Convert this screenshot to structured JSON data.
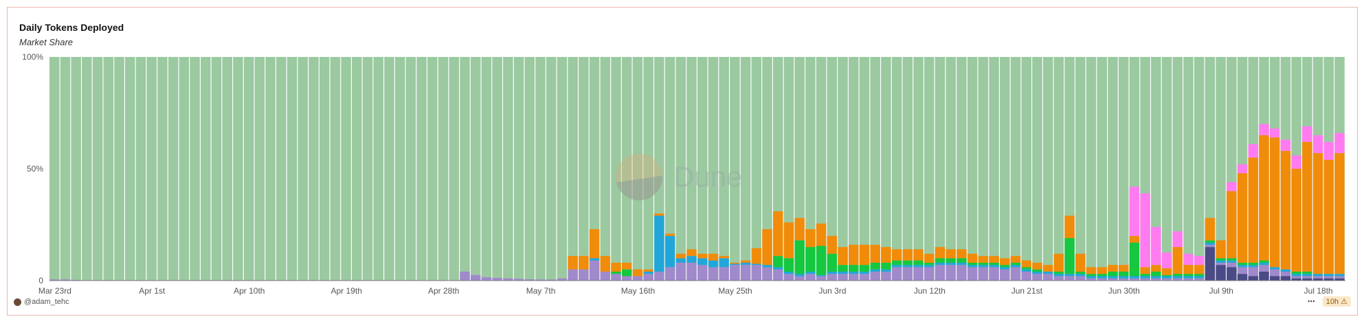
{
  "header": {
    "title": "Daily Tokens Deployed",
    "subtitle": "Market Share"
  },
  "footer": {
    "author": "@adam_tehc",
    "freshness": "10h",
    "more_label": "⋯",
    "warn_symbol": "⚠"
  },
  "watermark": "Dune",
  "colors": {
    "background_series": "#9bc9a0",
    "orange": "#f08c0a",
    "green": "#16c740",
    "blue": "#22a6d8",
    "purple": "#a08acb",
    "pink": "#ff7cf0",
    "navy": "#4a4a86"
  },
  "chart_data": {
    "type": "bar",
    "stacked": true,
    "percent": true,
    "n_days": 120,
    "ylim": [
      0,
      100
    ],
    "y_ticks": [
      "0",
      "50%",
      "100%"
    ],
    "x_tick_labels": [
      "Mar 23rd",
      "Apr 1st",
      "Apr 10th",
      "Apr 19th",
      "Apr 28th",
      "May 7th",
      "May 16th",
      "May 25th",
      "Jun 3rd",
      "Jun 12th",
      "Jun 21st",
      "Jun 30th",
      "Jul 9th",
      "Jul 18th"
    ],
    "stack_order": [
      "navy",
      "purple",
      "blue",
      "green",
      "orange",
      "pink"
    ],
    "series": [
      {
        "key": "purple",
        "values": [
          0.5,
          0.5,
          0.3,
          0.2,
          0.2,
          0.2,
          0.2,
          0.2,
          0.2,
          0.2,
          0.2,
          0.2,
          0.2,
          0.2,
          0.2,
          0.2,
          0.2,
          0.2,
          0.2,
          0.2,
          0.2,
          0.2,
          0.2,
          0.2,
          0.2,
          0.2,
          0.2,
          0.2,
          0.2,
          0.2,
          0.2,
          0.2,
          0.2,
          0.2,
          0.2,
          0.2,
          0.2,
          0.2,
          4,
          2.5,
          1.5,
          1.2,
          1,
          0.8,
          0.6,
          0.5,
          0.5,
          1,
          5,
          5,
          9,
          4,
          3,
          2,
          2,
          3,
          4,
          6,
          8,
          8,
          7,
          6,
          6,
          7,
          7,
          7,
          6,
          5,
          3,
          2,
          3,
          2,
          3,
          3,
          3,
          3,
          4,
          4,
          6,
          6,
          6,
          6,
          7,
          7,
          7,
          6,
          6,
          6,
          5,
          6,
          4,
          3,
          3,
          4,
          6,
          6,
          6,
          5,
          6,
          6,
          6,
          7,
          7,
          6,
          6,
          6,
          6,
          6,
          6,
          6,
          6,
          4,
          3,
          2,
          1,
          1,
          1,
          1,
          1,
          1,
          1,
          1,
          1,
          1,
          1,
          1,
          1,
          1,
          1,
          1,
          1,
          1,
          1,
          1,
          1,
          1,
          1,
          1,
          1
        ]
      },
      {
        "key": "blue",
        "values": [
          0,
          0,
          0,
          0,
          0,
          0,
          0,
          0,
          0,
          0,
          0,
          0,
          0,
          0,
          0,
          0,
          0,
          0,
          0,
          0,
          0,
          0,
          0,
          0,
          0,
          0,
          0,
          0,
          0,
          0,
          0,
          0,
          0,
          0,
          0,
          0,
          0,
          0,
          0,
          0,
          0,
          0,
          0,
          0,
          0,
          0,
          0,
          0,
          0,
          0,
          1,
          0,
          0,
          0,
          0,
          1,
          25,
          14,
          2,
          3,
          3,
          3,
          4,
          0.5,
          1,
          0.5,
          1,
          1,
          1,
          1,
          1,
          0.5,
          1,
          1,
          1,
          1,
          1,
          1,
          1,
          1,
          1,
          1,
          1,
          1,
          1,
          1,
          1,
          1,
          1,
          1,
          1,
          1,
          1,
          1,
          1,
          1,
          1,
          1,
          1,
          1,
          1,
          1,
          1,
          1,
          1,
          1,
          1,
          1,
          1,
          1,
          1,
          1,
          1,
          1,
          1,
          1,
          1,
          1,
          1,
          1,
          1,
          1,
          1,
          1,
          1,
          1,
          1,
          1,
          1,
          1,
          1,
          1,
          1,
          1,
          1,
          1,
          1,
          1,
          1,
          1,
          1
        ]
      },
      {
        "key": "green",
        "values": [
          0,
          0,
          0,
          0,
          0,
          0,
          0,
          0,
          0,
          0,
          0,
          0,
          0,
          0,
          0,
          0,
          0,
          0,
          0,
          0,
          0,
          0,
          0,
          0,
          0,
          0,
          0,
          0,
          0,
          0,
          0,
          0,
          0,
          0,
          0,
          0,
          0,
          0,
          0,
          0,
          0,
          0,
          0,
          0,
          0,
          0,
          0,
          0,
          0,
          0,
          0,
          0,
          1,
          3,
          0,
          0,
          0,
          0,
          0,
          0,
          0,
          0,
          0,
          0,
          0,
          0,
          0,
          5,
          6,
          15,
          11,
          13,
          8,
          3,
          3,
          3,
          3,
          3,
          2,
          2,
          2,
          1,
          2,
          2,
          2,
          1,
          1,
          1,
          1,
          1,
          1,
          1,
          0,
          1,
          16,
          1,
          1,
          1,
          2,
          2,
          15,
          1,
          2,
          0.5,
          1,
          1,
          1,
          1,
          1,
          1,
          1,
          1,
          1,
          0,
          0,
          1,
          1,
          0,
          0,
          0,
          0,
          0,
          0,
          0,
          0,
          0,
          0,
          0,
          0,
          0,
          0,
          0,
          0,
          0,
          0,
          0,
          0,
          0,
          0,
          0,
          0
        ]
      },
      {
        "key": "orange",
        "values": [
          0,
          0,
          0,
          0,
          0,
          0,
          0,
          0,
          0,
          0,
          0,
          0,
          0,
          0,
          0,
          0,
          0,
          0,
          0,
          0,
          0,
          0,
          0,
          0,
          0,
          0,
          0,
          0,
          0,
          0,
          0,
          0,
          0,
          0,
          0,
          0,
          0,
          0,
          0,
          0,
          0,
          0,
          0,
          0,
          0,
          0,
          0,
          0,
          6,
          6,
          13,
          7,
          4,
          3,
          3,
          1,
          1,
          1,
          2,
          3,
          2,
          3,
          1,
          0.5,
          1,
          7,
          16,
          20,
          16,
          10,
          8,
          10,
          8,
          8,
          9,
          9,
          8,
          7,
          5,
          5,
          5,
          4,
          5,
          4,
          4,
          4,
          3,
          3,
          3,
          3,
          3,
          3,
          3,
          3,
          2,
          3,
          3,
          3,
          3,
          3,
          3,
          3,
          3,
          3,
          3,
          4,
          4,
          4,
          4,
          4,
          4,
          4,
          4,
          4,
          4,
          4,
          4,
          3,
          3,
          3,
          2,
          2,
          0,
          0,
          5,
          12,
          40,
          62,
          60,
          70,
          65,
          62,
          58,
          56,
          60,
          60,
          64,
          66
        ]
      },
      {
        "key": "pink",
        "values": [
          0,
          0,
          0,
          0,
          0,
          0,
          0,
          0,
          0,
          0,
          0,
          0,
          0,
          0,
          0,
          0,
          0,
          0,
          0,
          0,
          0,
          0,
          0,
          0,
          0,
          0,
          0,
          0,
          0,
          0,
          0,
          0,
          0,
          0,
          0,
          0,
          0,
          0,
          0,
          0,
          0,
          0,
          0,
          0,
          0,
          0,
          0,
          0,
          0,
          0,
          0,
          0,
          0,
          0,
          0,
          0,
          0,
          0,
          0,
          0,
          0,
          0,
          0,
          0,
          0,
          0,
          0,
          0,
          0,
          0,
          0,
          0,
          0,
          0,
          0,
          0,
          0,
          0,
          0,
          0,
          0,
          0,
          0,
          0,
          0,
          0,
          0,
          0,
          0,
          0,
          0,
          0,
          0,
          0,
          0,
          0,
          0,
          0,
          0,
          0,
          0,
          0,
          0,
          0,
          0,
          0,
          0,
          0,
          0,
          0,
          0,
          0,
          0,
          0,
          0,
          0,
          0,
          0,
          0,
          0,
          0
        ]
      },
      {
        "key": "navy",
        "values": [
          0,
          0,
          0,
          0,
          0,
          0,
          0,
          0,
          0,
          0,
          0,
          0,
          0,
          0,
          0,
          0,
          0,
          0,
          0,
          0,
          0,
          0,
          0,
          0,
          0,
          0,
          0,
          0,
          0,
          0,
          0,
          0,
          0,
          0,
          0,
          0,
          0,
          0,
          0,
          0,
          0,
          0,
          0,
          0,
          0,
          0,
          0,
          0,
          0,
          0,
          0,
          0,
          0,
          0,
          0,
          0,
          0,
          0,
          0,
          0,
          0,
          0,
          0,
          0,
          0,
          0,
          0,
          0,
          0,
          0,
          0,
          0,
          0,
          0,
          0,
          0,
          0,
          0,
          0,
          0,
          0,
          0,
          0,
          0,
          0,
          0,
          0,
          0,
          0,
          0,
          0,
          0,
          0,
          0,
          0,
          0,
          0,
          0,
          0,
          0,
          0,
          0,
          0,
          0,
          0,
          0,
          0,
          0,
          0,
          0,
          0,
          0,
          0,
          0,
          0,
          0,
          0,
          0,
          0,
          0,
          0
        ]
      }
    ],
    "late_overrides": {
      "start_day": 93,
      "purple": [
        2,
        2,
        2,
        1,
        1,
        1,
        1,
        1,
        1,
        1,
        1,
        1,
        1,
        1,
        1,
        1,
        2,
        3,
        4,
        3,
        3,
        2,
        1,
        1,
        1,
        1,
        1
      ],
      "pink": [
        0,
        0,
        0,
        0,
        0,
        0,
        0,
        22,
        33,
        17,
        7,
        7,
        5,
        4,
        0,
        0,
        4,
        4,
        6,
        5,
        4,
        5,
        6,
        7,
        8,
        8,
        9
      ],
      "orange": [
        8,
        10,
        8,
        3,
        3,
        3,
        3,
        3,
        3,
        3,
        3,
        12,
        4,
        4,
        10,
        8,
        30,
        40,
        47,
        56,
        58,
        53,
        46,
        58,
        54,
        51,
        54
      ],
      "navy": [
        0,
        0,
        0,
        0,
        0,
        0,
        0,
        0,
        0,
        0,
        0,
        0,
        0,
        0,
        15,
        7,
        6,
        3,
        2,
        4,
        2,
        2,
        1,
        1,
        1,
        1,
        1
      ]
    }
  }
}
